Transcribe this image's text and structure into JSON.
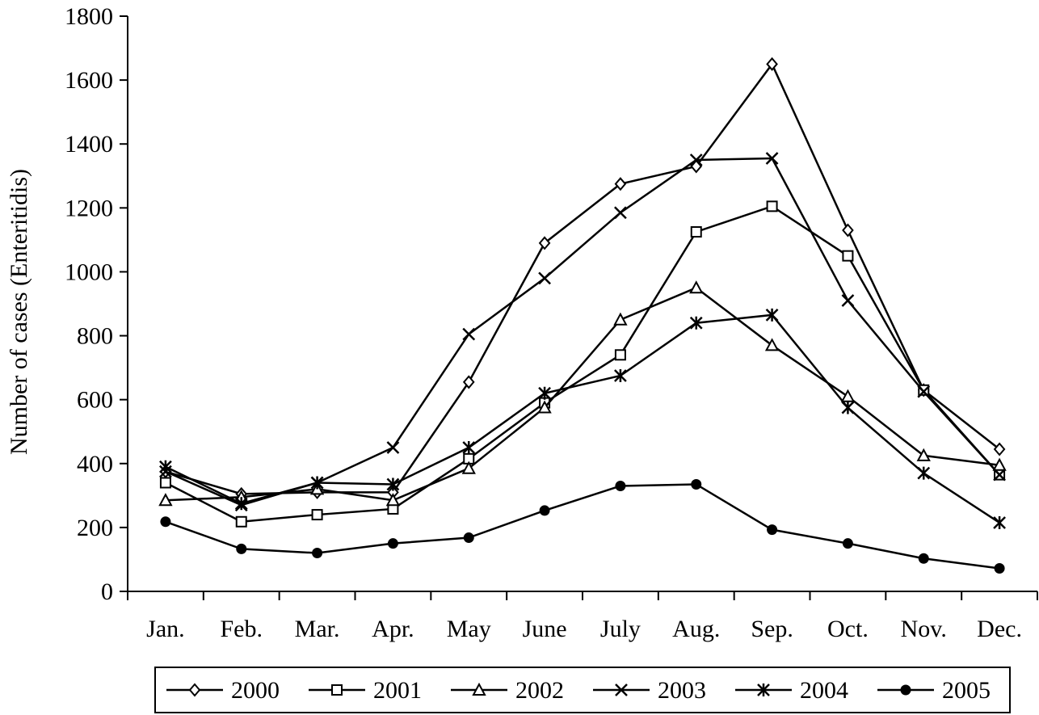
{
  "chart_data": {
    "type": "line",
    "title": "",
    "xlabel": "",
    "ylabel": "Number of cases (Enteritidis)",
    "categories": [
      "Jan.",
      "Feb.",
      "Mar.",
      "Apr.",
      "May",
      "June",
      "July",
      "Aug.",
      "Sep.",
      "Oct.",
      "Nov.",
      "Dec."
    ],
    "ylim": [
      0,
      1800
    ],
    "yticks": [
      0,
      200,
      400,
      600,
      800,
      1000,
      1200,
      1400,
      1600,
      1800
    ],
    "grid": false,
    "legend_position": "bottom",
    "series": [
      {
        "name": "2000",
        "marker": "diamond-open",
        "values": [
          375,
          305,
          310,
          310,
          655,
          1090,
          1275,
          1330,
          1650,
          1130,
          630,
          445
        ]
      },
      {
        "name": "2001",
        "marker": "square-open",
        "values": [
          340,
          218,
          240,
          258,
          415,
          590,
          740,
          1125,
          1205,
          1050,
          630,
          365
        ]
      },
      {
        "name": "2002",
        "marker": "triangle-open",
        "values": [
          285,
          295,
          320,
          285,
          385,
          575,
          850,
          950,
          770,
          610,
          425,
          395
        ]
      },
      {
        "name": "2003",
        "marker": "x",
        "values": [
          375,
          270,
          340,
          450,
          805,
          980,
          1185,
          1350,
          1355,
          910,
          625,
          365
        ]
      },
      {
        "name": "2004",
        "marker": "asterisk",
        "values": [
          390,
          275,
          340,
          335,
          450,
          620,
          675,
          840,
          865,
          575,
          370,
          215
        ]
      },
      {
        "name": "2005",
        "marker": "circle-filled",
        "values": [
          218,
          133,
          120,
          150,
          168,
          253,
          330,
          335,
          193,
          150,
          103,
          72
        ]
      }
    ]
  }
}
